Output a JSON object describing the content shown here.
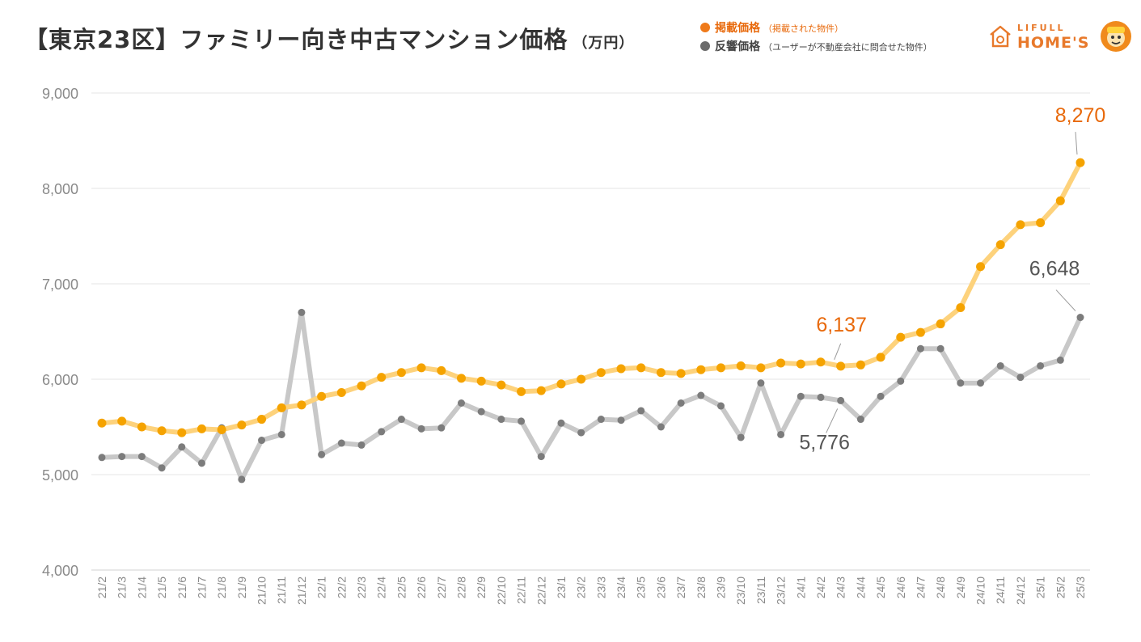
{
  "header": {
    "title": "【東京23区】ファミリー向き中古マンション価格",
    "unit": "（万円）"
  },
  "legend": [
    {
      "name": "掲載価格",
      "note": "（掲載された物件）",
      "color": "#ef7a1a"
    },
    {
      "name": "反響価格",
      "note": "（ユーザーが不動産会社に問合せた物件）",
      "color": "#6b6b6b"
    }
  ],
  "brand": {
    "line1": "LIFULL",
    "line2": "HOME'S",
    "logo_icon": "house-logo-icon",
    "mascot_icon": "mascot-icon"
  },
  "colors": {
    "listed_line": "#fdd27c",
    "listed_point": "#f5a300",
    "listed_label": "#e8690b",
    "response_line": "#c8c8c8",
    "response_point": "#7c7c7c",
    "response_label": "#555555",
    "grid": "#e6e6e6",
    "axis_text": "#8a8a8a"
  },
  "chart_data": {
    "type": "line",
    "x": [
      "21/2",
      "21/3",
      "21/4",
      "21/5",
      "21/6",
      "21/7",
      "21/8",
      "21/9",
      "21/10",
      "21/11",
      "21/12",
      "22/1",
      "22/2",
      "22/3",
      "22/4",
      "22/5",
      "22/6",
      "22/7",
      "22/8",
      "22/9",
      "22/10",
      "22/11",
      "22/12",
      "23/1",
      "23/2",
      "23/3",
      "23/4",
      "23/5",
      "23/6",
      "23/7",
      "23/8",
      "23/9",
      "23/10",
      "23/11",
      "23/12",
      "24/1",
      "24/2",
      "24/3",
      "24/4",
      "24/5",
      "24/6",
      "24/7",
      "24/8",
      "24/9",
      "24/10",
      "24/11",
      "24/12",
      "25/1",
      "25/2",
      "25/3"
    ],
    "ylim": [
      4000,
      9000
    ],
    "yticks": [
      4000,
      5000,
      6000,
      7000,
      8000,
      9000
    ],
    "ytick_labels": [
      "4,000",
      "5,000",
      "6,000",
      "7,000",
      "8,000",
      "9,000"
    ],
    "grid": true,
    "series": [
      {
        "name": "掲載価格",
        "values": [
          5540,
          5560,
          5500,
          5460,
          5440,
          5480,
          5470,
          5520,
          5580,
          5700,
          5730,
          5820,
          5860,
          5930,
          6020,
          6070,
          6120,
          6090,
          6010,
          5980,
          5940,
          5870,
          5880,
          5950,
          6000,
          6070,
          6110,
          6120,
          6070,
          6060,
          6100,
          6120,
          6140,
          6120,
          6170,
          6160,
          6180,
          6137,
          6150,
          6230,
          6440,
          6490,
          6580,
          6750,
          7180,
          7410,
          7620,
          7640,
          7870,
          8270
        ]
      },
      {
        "name": "反響価格",
        "values": [
          5180,
          5190,
          5190,
          5070,
          5290,
          5120,
          5490,
          4950,
          5360,
          5420,
          6700,
          5210,
          5330,
          5310,
          5450,
          5580,
          5480,
          5490,
          5750,
          5660,
          5580,
          5560,
          5190,
          5540,
          5440,
          5580,
          5570,
          5670,
          5500,
          5750,
          5830,
          5720,
          5390,
          5960,
          5420,
          5820,
          5810,
          5776,
          5580,
          5820,
          5980,
          6320,
          6320,
          5960,
          5960,
          6140,
          6020,
          6140,
          6200,
          6648
        ]
      }
    ],
    "annotations": [
      {
        "series": 0,
        "index": 37,
        "text": "6,137"
      },
      {
        "series": 0,
        "index": 49,
        "text": "8,270"
      },
      {
        "series": 1,
        "index": 37,
        "text": "5,776"
      },
      {
        "series": 1,
        "index": 49,
        "text": "6,648"
      }
    ]
  }
}
